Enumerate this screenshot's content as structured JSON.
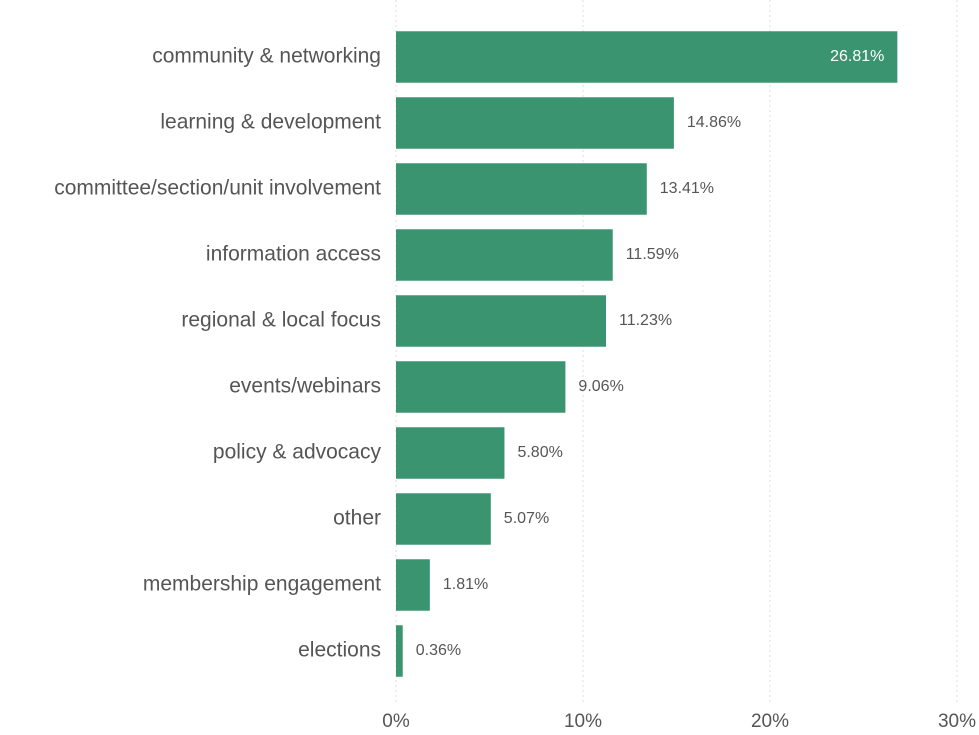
{
  "chart_data": {
    "type": "bar",
    "orientation": "horizontal",
    "categories": [
      "community & networking",
      "learning & development",
      "committee/section/unit involvement",
      "information access",
      "regional & local focus",
      "events/webinars",
      "policy & advocacy",
      "other",
      "membership engagement",
      "elections"
    ],
    "values": [
      26.81,
      14.86,
      13.41,
      11.59,
      11.23,
      9.06,
      5.8,
      5.07,
      1.81,
      0.36
    ],
    "value_labels": [
      "26.81%",
      "14.86%",
      "13.41%",
      "11.59%",
      "11.23%",
      "9.06%",
      "5.80%",
      "5.07%",
      "1.81%",
      "0.36%"
    ],
    "color": "#3b9470",
    "xlim": [
      0,
      30
    ],
    "xticks": [
      {
        "value": 0,
        "label": "0%"
      },
      {
        "value": 10,
        "label": "10%"
      },
      {
        "value": 20,
        "label": "20%"
      },
      {
        "value": 30,
        "label": "30%"
      }
    ],
    "grid": true
  }
}
